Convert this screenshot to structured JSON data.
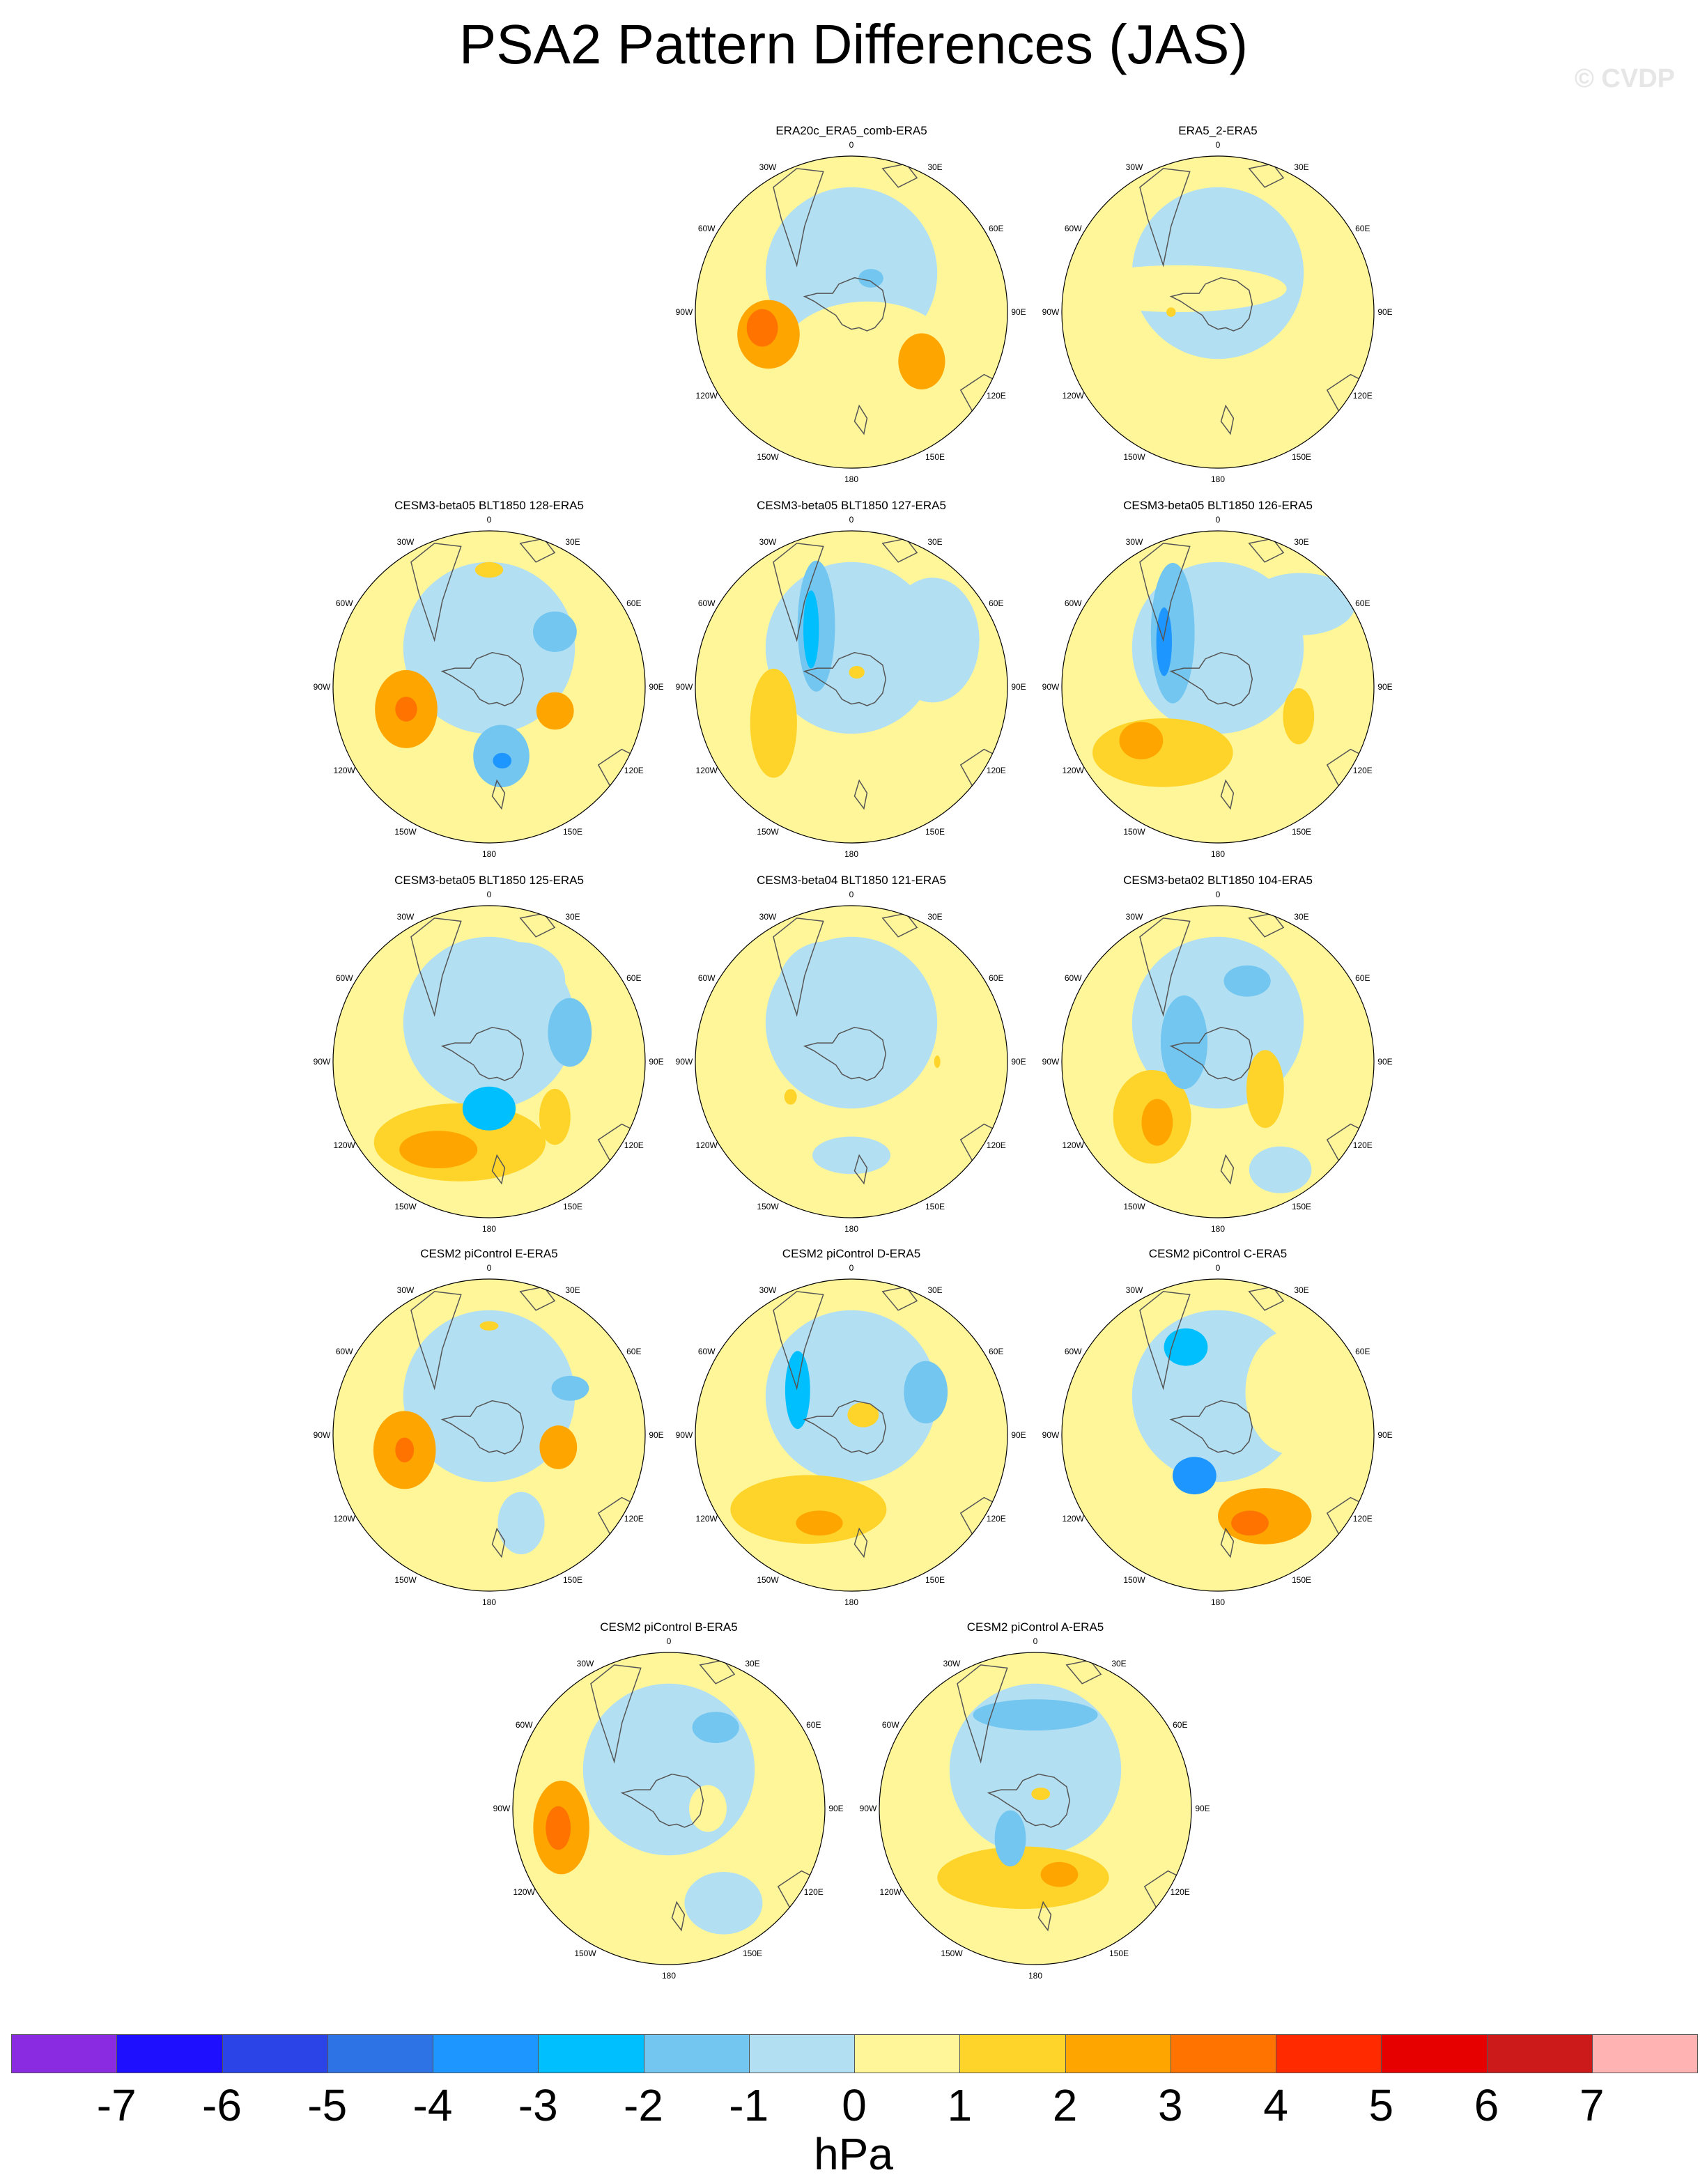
{
  "title": "PSA2 Pattern Differences (JAS)",
  "watermark": "© CVDP",
  "colors": {
    "palette": [
      "#8a2be2",
      "#1e0fff",
      "#2b44e8",
      "#2e73e6",
      "#1e96ff",
      "#00bfff",
      "#73c6f0",
      "#b3dff2",
      "#fff69a",
      "#ffd42a",
      "#ffa500",
      "#ff7300",
      "#ff2a00",
      "#e60000",
      "#cc1a1a",
      "#ffb3b3"
    ],
    "ocean_base": "#b3dff2",
    "yellow": "#fff69a"
  },
  "lon_labels": [
    "0",
    "30E",
    "60E",
    "90E",
    "120E",
    "150E",
    "180",
    "150W",
    "120W",
    "90W",
    "60W",
    "30W"
  ],
  "panels": [
    {
      "title": "ERA20c_ERA5_comb-ERA5",
      "blobs": [
        {
          "lon": 160,
          "r": 0.3,
          "level": 8,
          "rx": 0.55,
          "ry": 0.35
        },
        {
          "lon": -105,
          "r": 0.55,
          "level": 10,
          "rx": 0.2,
          "ry": 0.22
        },
        {
          "lon": -100,
          "r": 0.58,
          "level": 11,
          "rx": 0.1,
          "ry": 0.12
        },
        {
          "lon": 125,
          "r": 0.55,
          "level": 10,
          "rx": 0.15,
          "ry": 0.18
        },
        {
          "lon": 30,
          "r": 0.25,
          "level": 6,
          "rx": 0.08,
          "ry": 0.06
        }
      ]
    },
    {
      "title": "ERA5_2-ERA5",
      "blobs": [
        {
          "lon": -60,
          "r": 0.3,
          "level": 8,
          "rx": 0.7,
          "ry": 0.15
        },
        {
          "lon": 180,
          "r": 0.9,
          "level": 8,
          "rx": 0.3,
          "ry": 0.15
        },
        {
          "lon": 100,
          "r": 0.85,
          "level": 8,
          "rx": 0.2,
          "ry": 0.3
        },
        {
          "lon": -90,
          "r": 0.3,
          "level": 9,
          "rx": 0.03,
          "ry": 0.03
        }
      ]
    },
    {
      "title": "CESM3-beta05 BLT1850 128-ERA5",
      "blobs": [
        {
          "lon": -105,
          "r": 0.55,
          "level": 10,
          "rx": 0.2,
          "ry": 0.25
        },
        {
          "lon": -105,
          "r": 0.55,
          "level": 11,
          "rx": 0.07,
          "ry": 0.08
        },
        {
          "lon": 170,
          "r": 0.45,
          "level": 6,
          "rx": 0.18,
          "ry": 0.2
        },
        {
          "lon": 170,
          "r": 0.48,
          "level": 4,
          "rx": 0.06,
          "ry": 0.05
        },
        {
          "lon": 50,
          "r": 0.55,
          "level": 6,
          "rx": 0.14,
          "ry": 0.13
        },
        {
          "lon": 110,
          "r": 0.45,
          "level": 10,
          "rx": 0.12,
          "ry": 0.12
        },
        {
          "lon": 0,
          "r": 0.75,
          "level": 9,
          "rx": 0.09,
          "ry": 0.05
        }
      ]
    },
    {
      "title": "CESM3-beta05 BLT1850 127-ERA5",
      "blobs": [
        {
          "lon": -30,
          "r": 0.45,
          "level": 6,
          "rx": 0.12,
          "ry": 0.42
        },
        {
          "lon": -35,
          "r": 0.45,
          "level": 5,
          "rx": 0.05,
          "ry": 0.25
        },
        {
          "lon": -115,
          "r": 0.55,
          "level": 9,
          "rx": 0.15,
          "ry": 0.35
        },
        {
          "lon": 60,
          "r": 0.6,
          "level": 7,
          "rx": 0.3,
          "ry": 0.4
        },
        {
          "lon": 20,
          "r": 0.1,
          "level": 9,
          "rx": 0.05,
          "ry": 0.04
        }
      ]
    },
    {
      "title": "CESM3-beta05 BLT1850 126-ERA5",
      "blobs": [
        {
          "lon": -40,
          "r": 0.45,
          "level": 6,
          "rx": 0.14,
          "ry": 0.45
        },
        {
          "lon": -50,
          "r": 0.45,
          "level": 4,
          "rx": 0.05,
          "ry": 0.22
        },
        {
          "lon": -140,
          "r": 0.55,
          "level": 9,
          "rx": 0.45,
          "ry": 0.22
        },
        {
          "lon": -125,
          "r": 0.6,
          "level": 10,
          "rx": 0.14,
          "ry": 0.12
        },
        {
          "lon": 110,
          "r": 0.55,
          "level": 9,
          "rx": 0.1,
          "ry": 0.18
        },
        {
          "lon": 45,
          "r": 0.75,
          "level": 7,
          "rx": 0.35,
          "ry": 0.2
        }
      ]
    },
    {
      "title": "CESM3-beta05 BLT1850 125-ERA5",
      "blobs": [
        {
          "lon": -160,
          "r": 0.55,
          "level": 9,
          "rx": 0.55,
          "ry": 0.25
        },
        {
          "lon": -150,
          "r": 0.65,
          "level": 10,
          "rx": 0.25,
          "ry": 0.12
        },
        {
          "lon": 180,
          "r": 0.3,
          "level": 5,
          "rx": 0.17,
          "ry": 0.14
        },
        {
          "lon": 70,
          "r": 0.55,
          "level": 6,
          "rx": 0.14,
          "ry": 0.22
        },
        {
          "lon": 20,
          "r": 0.55,
          "level": 7,
          "rx": 0.3,
          "ry": 0.25
        },
        {
          "lon": 130,
          "r": 0.55,
          "level": 9,
          "rx": 0.1,
          "ry": 0.18
        }
      ]
    },
    {
      "title": "CESM3-beta04 BLT1850 121-ERA5",
      "blobs": [
        {
          "lon": -20,
          "r": 0.45,
          "level": 6,
          "rx": 0.15,
          "ry": 0.14
        },
        {
          "lon": -20,
          "r": 0.5,
          "level": 7,
          "rx": 0.3,
          "ry": 0.3
        },
        {
          "lon": 180,
          "r": 0.6,
          "level": 7,
          "rx": 0.25,
          "ry": 0.12
        },
        {
          "lon": -120,
          "r": 0.45,
          "level": 9,
          "rx": 0.04,
          "ry": 0.05
        },
        {
          "lon": 90,
          "r": 0.55,
          "level": 9,
          "rx": 0.02,
          "ry": 0.04
        }
      ]
    },
    {
      "title": "CESM3-beta02 BLT1850 104-ERA5",
      "blobs": [
        {
          "lon": -130,
          "r": 0.55,
          "level": 9,
          "rx": 0.25,
          "ry": 0.3
        },
        {
          "lon": -135,
          "r": 0.55,
          "level": 10,
          "rx": 0.1,
          "ry": 0.15
        },
        {
          "lon": 20,
          "r": 0.55,
          "level": 6,
          "rx": 0.15,
          "ry": 0.1
        },
        {
          "lon": -60,
          "r": 0.25,
          "level": 6,
          "rx": 0.15,
          "ry": 0.3
        },
        {
          "lon": 120,
          "r": 0.35,
          "level": 9,
          "rx": 0.12,
          "ry": 0.25
        },
        {
          "lon": 150,
          "r": 0.8,
          "level": 7,
          "rx": 0.2,
          "ry": 0.15
        }
      ]
    },
    {
      "title": "CESM2 piControl E-ERA5",
      "blobs": [
        {
          "lon": -100,
          "r": 0.55,
          "level": 10,
          "rx": 0.2,
          "ry": 0.25
        },
        {
          "lon": -100,
          "r": 0.55,
          "level": 11,
          "rx": 0.06,
          "ry": 0.08
        },
        {
          "lon": 100,
          "r": 0.45,
          "level": 10,
          "rx": 0.12,
          "ry": 0.14
        },
        {
          "lon": 60,
          "r": 0.6,
          "level": 6,
          "rx": 0.12,
          "ry": 0.08
        },
        {
          "lon": 160,
          "r": 0.6,
          "level": 7,
          "rx": 0.15,
          "ry": 0.2
        },
        {
          "lon": 0,
          "r": 0.7,
          "level": 9,
          "rx": 0.06,
          "ry": 0.03
        }
      ]
    },
    {
      "title": "CESM2 piControl D-ERA5",
      "blobs": [
        {
          "lon": -150,
          "r": 0.55,
          "level": 9,
          "rx": 0.5,
          "ry": 0.22
        },
        {
          "lon": -160,
          "r": 0.6,
          "level": 10,
          "rx": 0.15,
          "ry": 0.08
        },
        {
          "lon": -50,
          "r": 0.45,
          "level": 5,
          "rx": 0.08,
          "ry": 0.25
        },
        {
          "lon": 60,
          "r": 0.55,
          "level": 6,
          "rx": 0.14,
          "ry": 0.2
        },
        {
          "lon": 30,
          "r": 0.15,
          "level": 9,
          "rx": 0.1,
          "ry": 0.08
        }
      ]
    },
    {
      "title": "CESM2 piControl C-ERA5",
      "blobs": [
        {
          "lon": -20,
          "r": 0.6,
          "level": 5,
          "rx": 0.14,
          "ry": 0.12
        },
        {
          "lon": -150,
          "r": 0.3,
          "level": 4,
          "rx": 0.14,
          "ry": 0.12
        },
        {
          "lon": 150,
          "r": 0.6,
          "level": 10,
          "rx": 0.3,
          "ry": 0.18
        },
        {
          "lon": 160,
          "r": 0.6,
          "level": 11,
          "rx": 0.12,
          "ry": 0.08
        },
        {
          "lon": 60,
          "r": 0.55,
          "level": 8,
          "rx": 0.3,
          "ry": 0.4
        }
      ]
    },
    {
      "title": "CESM2 piControl B-ERA5",
      "blobs": [
        {
          "lon": -100,
          "r": 0.7,
          "level": 10,
          "rx": 0.18,
          "ry": 0.3
        },
        {
          "lon": -100,
          "r": 0.72,
          "level": 11,
          "rx": 0.08,
          "ry": 0.14
        },
        {
          "lon": 30,
          "r": 0.6,
          "level": 6,
          "rx": 0.15,
          "ry": 0.1
        },
        {
          "lon": 90,
          "r": 0.25,
          "level": 8,
          "rx": 0.12,
          "ry": 0.15
        },
        {
          "lon": 150,
          "r": 0.7,
          "level": 7,
          "rx": 0.25,
          "ry": 0.2
        }
      ]
    },
    {
      "title": "CESM2 piControl A-ERA5",
      "blobs": [
        {
          "lon": -170,
          "r": 0.45,
          "level": 9,
          "rx": 0.55,
          "ry": 0.2
        },
        {
          "lon": 160,
          "r": 0.45,
          "level": 10,
          "rx": 0.12,
          "ry": 0.08
        },
        {
          "lon": -140,
          "r": 0.25,
          "level": 6,
          "rx": 0.1,
          "ry": 0.18
        },
        {
          "lon": 0,
          "r": 0.6,
          "level": 6,
          "rx": 0.4,
          "ry": 0.1
        },
        {
          "lon": 20,
          "r": 0.1,
          "level": 9,
          "rx": 0.06,
          "ry": 0.04
        }
      ]
    }
  ],
  "colorbar": {
    "labels": [
      "-7",
      "-6",
      "-5",
      "-4",
      "-3",
      "-2",
      "-1",
      "0",
      "1",
      "2",
      "3",
      "4",
      "5",
      "6",
      "7"
    ],
    "units": "hPa"
  }
}
